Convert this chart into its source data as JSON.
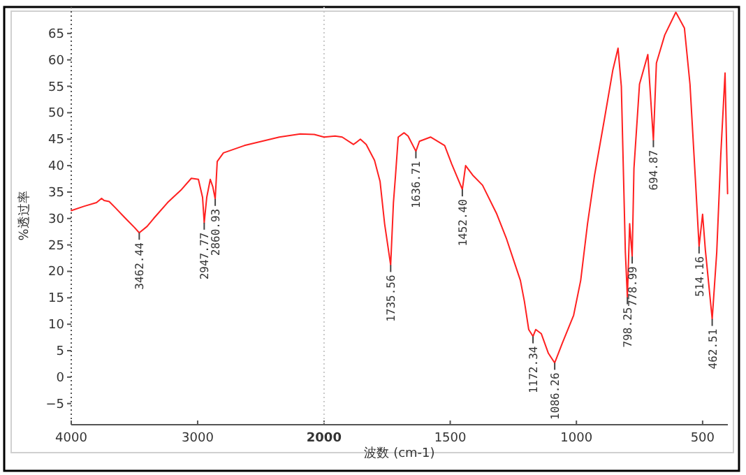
{
  "chart_data": [
    {
      "type": "line",
      "ylabel": "%透过率",
      "xlim": [
        4000,
        2000
      ],
      "xticks": [
        4000,
        3000,
        2000
      ],
      "ylim": [
        -9,
        70
      ],
      "yticks": [
        -5,
        0,
        5,
        10,
        15,
        20,
        25,
        30,
        35,
        40,
        45,
        50,
        55,
        60,
        65
      ],
      "grid": false,
      "marker": "none",
      "line_style": "solid",
      "x": [
        4000,
        3900,
        3800,
        3760,
        3740,
        3700,
        3650,
        3570,
        3500,
        3462,
        3400,
        3348,
        3238,
        3127,
        3050,
        2994,
        2961,
        2948,
        2928,
        2900,
        2880,
        2861,
        2845,
        2796,
        2630,
        2354,
        2188,
        2077,
        2000
      ],
      "series": [
        {
          "color": "#ff2020",
          "values": [
            31.5,
            32.3,
            33,
            33.8,
            33.4,
            33.2,
            32,
            30,
            28.3,
            27.3,
            28.5,
            30,
            33,
            35.5,
            37.6,
            37.4,
            34,
            29.2,
            34,
            37.4,
            36,
            33.7,
            40.8,
            42.4,
            43.8,
            45.4,
            46,
            45.9,
            45.4
          ]
        }
      ],
      "annotations": [
        {
          "text": "3462.44",
          "x": 3462,
          "y": 27.3
        },
        {
          "text": "2947.77",
          "x": 2948,
          "y": 29.2
        },
        {
          "text": "2860.93",
          "x": 2861,
          "y": 33.7
        }
      ]
    },
    {
      "type": "line",
      "xlabel": "波数 (cm-1)",
      "tick_labels": "x",
      "xlim": [
        2000,
        400
      ],
      "xticks": [
        1500,
        1000,
        500
      ],
      "ylim": [
        -9,
        70
      ],
      "grid": false,
      "marker": "none",
      "line_style": "solid",
      "ref_lines": [
        {
          "axis": "x",
          "value": 2000,
          "line_style": "dotted",
          "color": "#c8c8c8"
        }
      ],
      "x": [
        2000,
        1956,
        1928,
        1883,
        1856,
        1833,
        1800,
        1778,
        1760,
        1736,
        1725,
        1717,
        1706,
        1683,
        1667,
        1636,
        1622,
        1578,
        1522,
        1494,
        1452,
        1439,
        1411,
        1372,
        1317,
        1278,
        1250,
        1222,
        1206,
        1189,
        1172,
        1161,
        1139,
        1111,
        1086,
        1056,
        1011,
        983,
        956,
        928,
        889,
        856,
        835,
        822,
        806,
        798,
        789,
        779,
        772,
        750,
        717,
        695,
        683,
        650,
        606,
        572,
        550,
        528,
        514,
        500,
        489,
        462,
        444,
        428,
        411,
        406,
        401
      ],
      "series": [
        {
          "color": "#ff2020",
          "values": [
            45.4,
            45.6,
            45.4,
            44,
            45,
            44,
            41,
            37,
            29,
            21.2,
            33,
            38,
            45.4,
            46.2,
            45.6,
            42.7,
            44.6,
            45.4,
            43.8,
            40.3,
            35.5,
            40,
            38.2,
            36.3,
            31,
            26.3,
            22.3,
            18.3,
            14.3,
            9,
            7.7,
            9,
            8.2,
            4.5,
            2.7,
            6.4,
            11.7,
            18.3,
            29,
            38.2,
            48.8,
            58,
            62.2,
            55,
            23.6,
            15.1,
            29,
            22.8,
            39.5,
            55.4,
            61,
            44.8,
            59.4,
            64.7,
            69,
            66,
            55.4,
            36.9,
            24.7,
            30.8,
            24,
            11,
            23.6,
            42,
            57.5,
            46,
            34.7
          ]
        }
      ],
      "annotations": [
        {
          "text": "1735.56",
          "x": 1736,
          "y": 21.2
        },
        {
          "text": "1636.71",
          "x": 1636,
          "y": 42.7
        },
        {
          "text": "1452.40",
          "x": 1452,
          "y": 35.5
        },
        {
          "text": "1172.34",
          "x": 1172,
          "y": 7.7
        },
        {
          "text": "1086.26",
          "x": 1086,
          "y": 2.7
        },
        {
          "text": "798.25",
          "x": 798,
          "y": 15.1
        },
        {
          "text": "778.99",
          "x": 779,
          "y": 22.8
        },
        {
          "text": "694.87",
          "x": 695,
          "y": 44.8
        },
        {
          "text": "514.16",
          "x": 514,
          "y": 24.7
        },
        {
          "text": "462.51",
          "x": 462,
          "y": 11
        }
      ]
    }
  ]
}
